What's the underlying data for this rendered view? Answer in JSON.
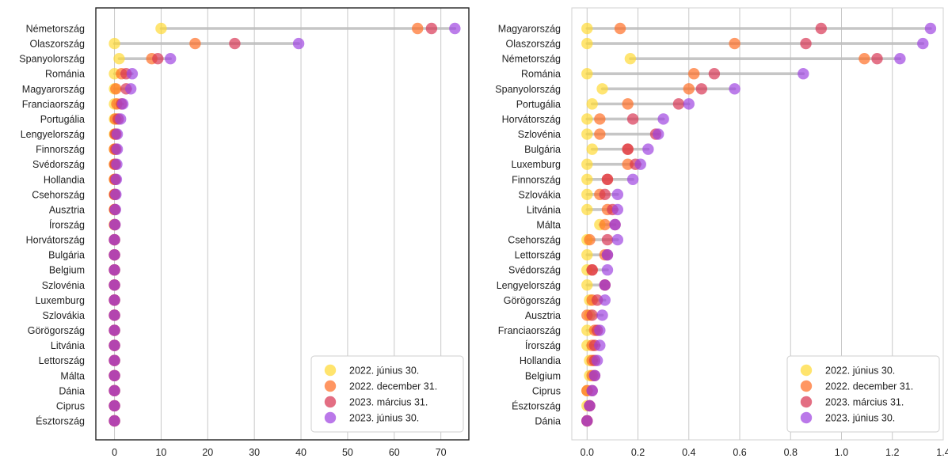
{
  "chart_data": [
    {
      "type": "dumbbell",
      "xlim": [
        -4,
        76
      ],
      "xticks": [
        "0",
        "10",
        "20",
        "30",
        "40",
        "50",
        "60",
        "70"
      ],
      "grid": "vertical",
      "legend_position": "lower-right",
      "series": [
        {
          "name": "2022. június 30.",
          "color": "#ffd92f"
        },
        {
          "name": "2022. december 31.",
          "color": "#ff6a1f"
        },
        {
          "name": "2023. március 31.",
          "color": "#d7304f"
        },
        {
          "name": "2023. június 30.",
          "color": "#9c3fe0"
        }
      ],
      "categories": [
        "Németország",
        "Olaszország",
        "Spanyolország",
        "Románia",
        "Magyarország",
        "Franciaország",
        "Portugália",
        "Lengyelország",
        "Finnország",
        "Svédország",
        "Hollandia",
        "Csehország",
        "Ausztria",
        "Írország",
        "Horvátország",
        "Bulgária",
        "Belgium",
        "Szlovénia",
        "Luxemburg",
        "Szlovákia",
        "Görögország",
        "Litvánia",
        "Lettország",
        "Málta",
        "Dánia",
        "Ciprus",
        "Észtország"
      ],
      "values": [
        [
          10,
          65,
          68,
          73
        ],
        [
          0,
          17.3,
          25.8,
          39.5
        ],
        [
          1,
          8,
          9.3,
          12
        ],
        [
          0,
          1.5,
          2.5,
          3.8
        ],
        [
          0,
          0.3,
          2.5,
          3.5
        ],
        [
          0,
          0.5,
          1.5,
          1.8
        ],
        [
          0,
          0.2,
          0.8,
          1.3
        ],
        [
          0,
          0.1,
          0.3,
          0.6
        ],
        [
          0,
          0,
          0.3,
          0.6
        ],
        [
          0,
          0,
          0.2,
          0.5
        ],
        [
          0,
          0,
          0.2,
          0.4
        ],
        [
          0,
          0,
          0.1,
          0.3
        ],
        [
          0,
          0,
          0.1,
          0.2
        ],
        [
          0,
          0,
          0.1,
          0.1
        ],
        [
          0,
          0,
          0,
          0
        ],
        [
          0,
          0,
          0,
          0
        ],
        [
          0,
          0,
          0,
          0
        ],
        [
          0,
          0,
          0,
          0
        ],
        [
          0,
          0,
          0,
          0
        ],
        [
          0,
          0,
          0,
          0
        ],
        [
          0,
          0,
          0,
          0
        ],
        [
          0,
          0,
          0,
          0
        ],
        [
          0,
          0,
          0,
          0
        ],
        [
          0,
          0,
          0,
          0
        ],
        [
          0,
          0,
          0,
          0
        ],
        [
          0,
          0,
          0,
          0
        ],
        [
          0,
          0,
          0,
          0
        ]
      ]
    },
    {
      "type": "dumbbell",
      "xlim": [
        -0.06,
        1.4
      ],
      "xticks": [
        "0.0",
        "0.2",
        "0.4",
        "0.6",
        "0.8",
        "1.0",
        "1.2",
        "1.4"
      ],
      "grid": "vertical",
      "legend_position": "lower-right",
      "series": [
        {
          "name": "2022. június 30.",
          "color": "#ffd92f"
        },
        {
          "name": "2022. december 31.",
          "color": "#ff6a1f"
        },
        {
          "name": "2023. március 31.",
          "color": "#d7304f"
        },
        {
          "name": "2023. június 30.",
          "color": "#9c3fe0"
        }
      ],
      "categories": [
        "Magyarország",
        "Olaszország",
        "Németország",
        "Románia",
        "Spanyolország",
        "Portugália",
        "Horvátország",
        "Szlovénia",
        "Bulgária",
        "Luxemburg",
        "Finnország",
        "Szlovákia",
        "Litvánia",
        "Málta",
        "Csehország",
        "Lettország",
        "Svédország",
        "Lengyelország",
        "Görögország",
        "Ausztria",
        "Franciaország",
        "Írország",
        "Hollandia",
        "Belgium",
        "Ciprus",
        "Észtország",
        "Dánia"
      ],
      "values": [
        [
          0,
          0.13,
          0.92,
          1.35
        ],
        [
          0,
          0.58,
          0.86,
          1.32
        ],
        [
          0.17,
          1.09,
          1.14,
          1.23
        ],
        [
          0,
          0.42,
          0.5,
          0.85
        ],
        [
          0.06,
          0.4,
          0.45,
          0.58
        ],
        [
          0.02,
          0.16,
          0.36,
          0.4
        ],
        [
          0,
          0.05,
          0.18,
          0.3
        ],
        [
          0,
          0.05,
          0.27,
          0.28
        ],
        [
          0.02,
          0.16,
          0.16,
          0.24
        ],
        [
          0,
          0.16,
          0.19,
          0.21
        ],
        [
          0,
          0.08,
          0.08,
          0.18
        ],
        [
          0,
          0.05,
          0.07,
          0.12
        ],
        [
          0,
          0.08,
          0.1,
          0.12
        ],
        [
          0.05,
          0.07,
          0.11,
          0.11
        ],
        [
          0,
          0.01,
          0.08,
          0.12
        ],
        [
          0,
          0.07,
          0.08,
          0.08
        ],
        [
          0,
          0.02,
          0.02,
          0.08
        ],
        [
          0,
          0.07,
          0.07,
          0.07
        ],
        [
          0.01,
          0.02,
          0.04,
          0.07
        ],
        [
          0.01,
          0,
          0.02,
          0.06
        ],
        [
          0,
          0.03,
          0.04,
          0.05
        ],
        [
          0,
          0.02,
          0.03,
          0.05
        ],
        [
          0.01,
          0.02,
          0.03,
          0.04
        ],
        [
          0.01,
          0.02,
          0.03,
          0.03
        ],
        [
          0,
          0,
          0.02,
          0.02
        ],
        [
          0,
          0.01,
          0.01,
          0.01
        ],
        [
          0,
          0,
          0,
          0
        ]
      ]
    }
  ]
}
